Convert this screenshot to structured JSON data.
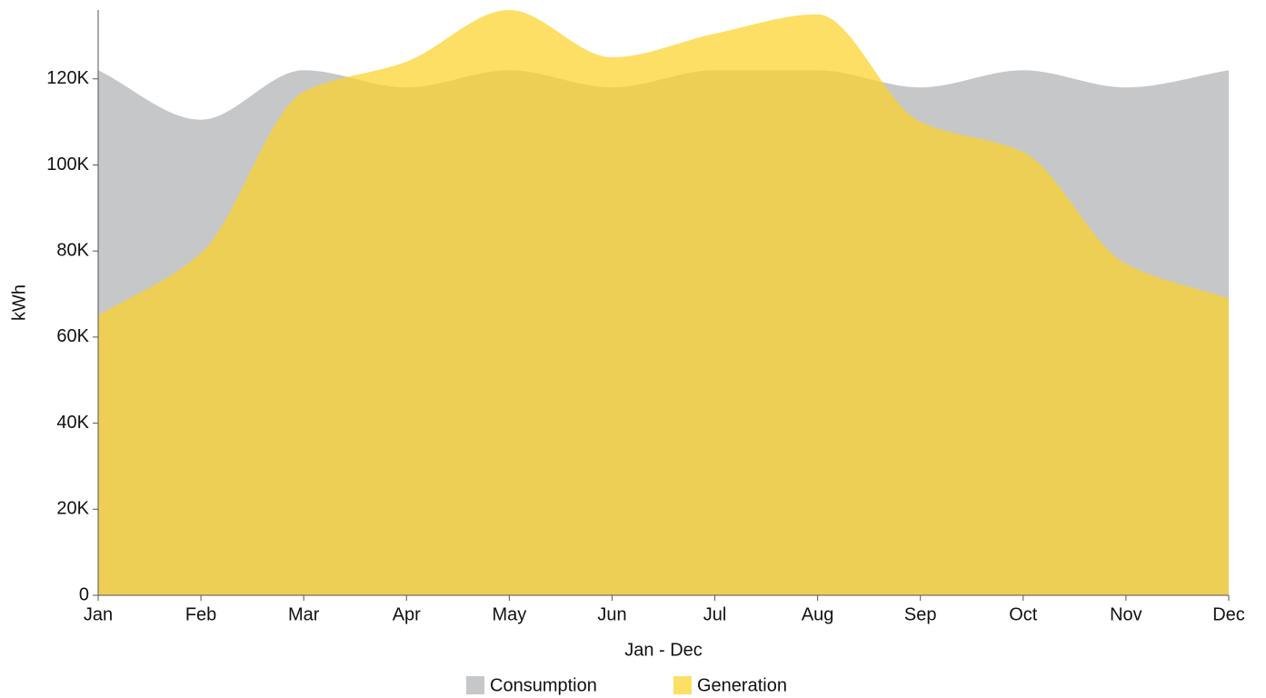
{
  "chart_data": {
    "type": "area",
    "x_label": "Jan - Dec",
    "y_label": "kWh",
    "categories": [
      "Jan",
      "Feb",
      "Mar",
      "Apr",
      "May",
      "Jun",
      "Jul",
      "Aug",
      "Sep",
      "Oct",
      "Nov",
      "Dec"
    ],
    "series": [
      {
        "name": "Consumption",
        "color": "#c6c7c9",
        "opacity": 1,
        "values": [
          122000,
          110500,
          122000,
          118000,
          122000,
          118000,
          122000,
          122000,
          118000,
          122000,
          118000,
          122000
        ]
      },
      {
        "name": "Generation",
        "color": "#fcd32a",
        "opacity": 0.72,
        "values": [
          65000,
          79500,
          117000,
          124000,
          136000,
          125000,
          130500,
          135000,
          110000,
          103000,
          77000,
          69000
        ]
      }
    ],
    "ylim": [
      0,
      136000
    ],
    "yticks": [
      0,
      {
        "value": 20000,
        "label": "20K"
      },
      {
        "value": 40000,
        "label": "40K"
      },
      {
        "value": 60000,
        "label": "60K"
      },
      {
        "value": 80000,
        "label": "80K"
      },
      {
        "value": 100000,
        "label": "100K"
      },
      {
        "value": 120000,
        "label": "120K"
      }
    ],
    "legend": "bottom"
  }
}
